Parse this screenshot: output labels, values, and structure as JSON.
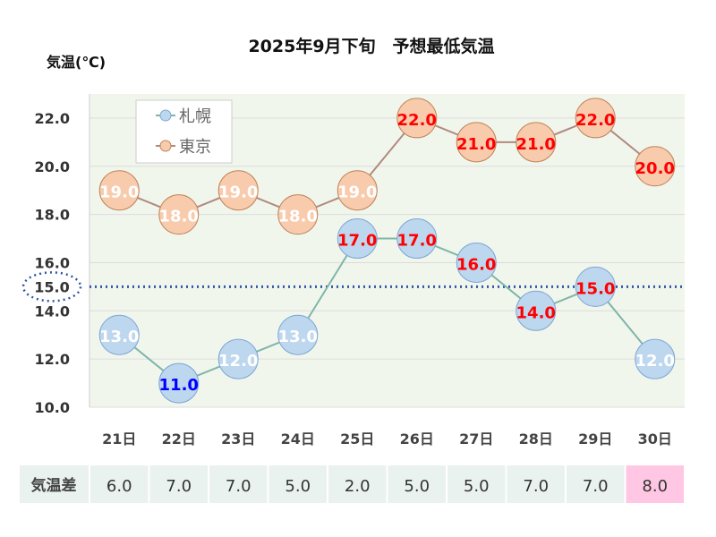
{
  "chart_data": {
    "type": "line",
    "title": "2025年9月下旬　予想最低気温",
    "ylabel": "気温(℃)",
    "xlabel": "",
    "ylim": [
      10,
      23
    ],
    "yticks": [
      "10.0",
      "12.0",
      "14.0",
      "16.0",
      "18.0",
      "20.0",
      "22.0"
    ],
    "grid": true,
    "legend_position": "top-left",
    "categories": [
      "21日",
      "22日",
      "23日",
      "24日",
      "25日",
      "26日",
      "27日",
      "28日",
      "29日",
      "30日"
    ],
    "series": [
      {
        "name": "札幌",
        "values": [
          13,
          11,
          12,
          13,
          17,
          17,
          16,
          14,
          15,
          12
        ],
        "labels": [
          "13.0",
          "11.0",
          "12.0",
          "13.0",
          "17.0",
          "17.0",
          "16.0",
          "14.0",
          "15.0",
          "12.0"
        ],
        "label_colors": [
          "#ffffff",
          "#0000ff",
          "#ffffff",
          "#ffffff",
          "#ff0000",
          "#ff0000",
          "#ff0000",
          "#ff0000",
          "#ff0000",
          "#ffffff"
        ],
        "fill": "#bdd7ee",
        "stroke": "#7fa7d6",
        "line": "#7fb5aa"
      },
      {
        "name": "東京",
        "values": [
          19,
          18,
          19,
          18,
          19,
          22,
          21,
          21,
          22,
          20
        ],
        "labels": [
          "19.0",
          "18.0",
          "19.0",
          "18.0",
          "19.0",
          "22.0",
          "21.0",
          "21.0",
          "22.0",
          "20.0"
        ],
        "label_colors": [
          "#ffffff",
          "#ffffff",
          "#ffffff",
          "#ffffff",
          "#ffffff",
          "#ff0000",
          "#ff0000",
          "#ff0000",
          "#ff0000",
          "#ff0000"
        ],
        "fill": "#f8cbad",
        "stroke": "#c0845a",
        "line": "#b08a80"
      }
    ],
    "reference_line": {
      "value": 15,
      "label": "15.0",
      "color": "#2f55a4"
    },
    "diff_table": {
      "label": "気温差",
      "values": [
        "6.0",
        "7.0",
        "7.0",
        "5.0",
        "2.0",
        "5.0",
        "5.0",
        "7.0",
        "7.0",
        "8.0"
      ],
      "highlight_index": 9,
      "cell_color": "#eaf2f0",
      "highlight_color": "#ffc7e3"
    }
  }
}
